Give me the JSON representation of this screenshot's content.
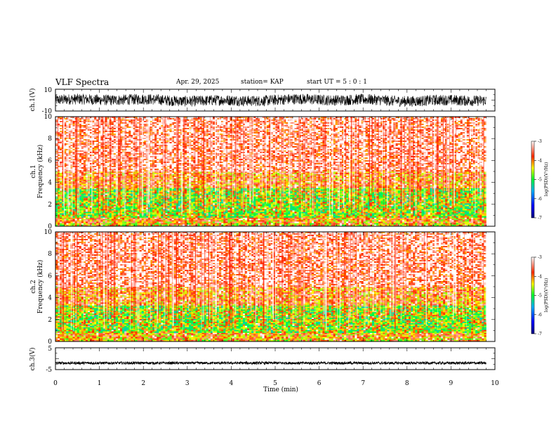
{
  "header": {
    "title": "VLF Spectra",
    "date": "Apr. 29, 2025",
    "station": "station= KAP",
    "start_ut": "start  UT  =   5 : 0  : 1"
  },
  "chart_data": [
    {
      "type": "line",
      "panel": "ch1-waveform",
      "ylabel": "ch.1(V)",
      "ylim": [
        -10,
        10
      ],
      "yticks": [
        "10",
        "-10"
      ],
      "xlim": [
        0,
        10
      ],
      "x_extent_min": 9.8,
      "series": [
        {
          "approx_amplitude_V": 5,
          "approx_offset_V": 0,
          "color": "#000000"
        }
      ]
    },
    {
      "type": "heatmap",
      "panel": "ch1-spectrogram",
      "ylabel": "ch.1\nFrequency  (kHz)",
      "ylim": [
        0,
        10
      ],
      "yticks": [
        "0",
        "2",
        "4",
        "6",
        "8",
        "10"
      ],
      "xlim": [
        0,
        10
      ],
      "x_extent_min": 9.8,
      "colorbar": {
        "label": "log(PSD)(V²/Hz)",
        "range": [
          -7,
          -3
        ],
        "ticks": [
          "-3",
          "-4",
          "-5",
          "-6",
          "-7"
        ]
      },
      "bands_kHz": [
        {
          "from": 0,
          "to": 0.3,
          "level": -4.2
        },
        {
          "from": 0.3,
          "to": 0.8,
          "level": -4.0
        },
        {
          "from": 0.8,
          "to": 3.5,
          "level": -4.6
        },
        {
          "from": 3.5,
          "to": 5.0,
          "level": -3.9
        },
        {
          "from": 5.0,
          "to": 10.0,
          "level": -3.4
        }
      ]
    },
    {
      "type": "heatmap",
      "panel": "ch2-spectrogram",
      "ylabel": "ch.2\nFrequency  (kHz)",
      "ylim": [
        0,
        10
      ],
      "yticks": [
        "0",
        "2",
        "4",
        "6",
        "8",
        "10"
      ],
      "xlim": [
        0,
        10
      ],
      "x_extent_min": 9.8,
      "colorbar": {
        "label": "log(PSD)(V²/Hz)",
        "range": [
          -7,
          -3
        ],
        "ticks": [
          "-3",
          "-4",
          "-5",
          "-6",
          "-7"
        ]
      },
      "bands_kHz": [
        {
          "from": 0,
          "to": 0.3,
          "level": -4.2
        },
        {
          "from": 0.3,
          "to": 0.8,
          "level": -4.0
        },
        {
          "from": 0.8,
          "to": 3.3,
          "level": -4.6
        },
        {
          "from": 3.3,
          "to": 5.0,
          "level": -3.9
        },
        {
          "from": 5.0,
          "to": 10.0,
          "level": -3.4
        }
      ]
    },
    {
      "type": "line",
      "panel": "ch3-waveform",
      "ylabel": "ch.3(V)",
      "ylim": [
        -5,
        5
      ],
      "yticks": [
        "5",
        "-5"
      ],
      "xlim": [
        0,
        10
      ],
      "x_extent_min": 9.8,
      "xlabel": "Time  (min)",
      "xticks": [
        "0",
        "1",
        "2",
        "3",
        "4",
        "5",
        "6",
        "7",
        "8",
        "9",
        "10"
      ],
      "series": [
        {
          "approx_offset_V": -2,
          "approx_amplitude_V": 0.6,
          "color": "#000000"
        }
      ]
    }
  ]
}
